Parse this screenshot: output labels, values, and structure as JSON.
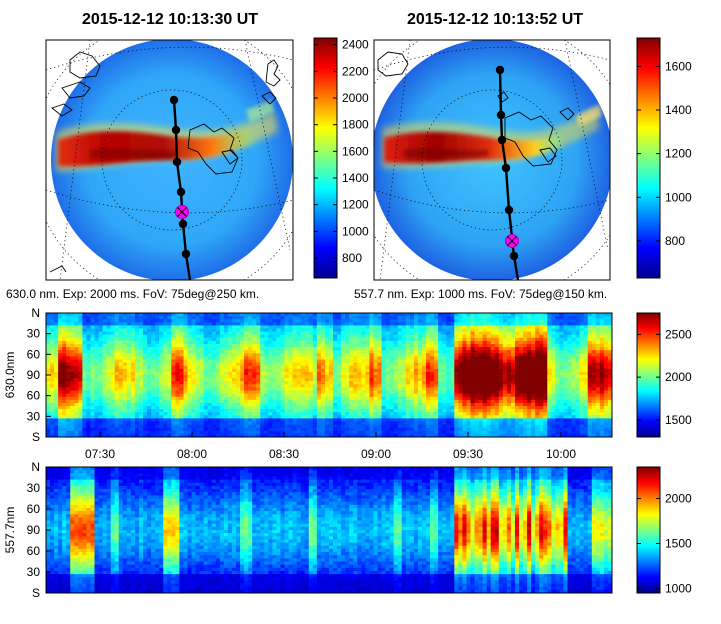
{
  "colors": {
    "jet": [
      "#00008f",
      "#0000ff",
      "#00ffff",
      "#ffff00",
      "#ff0000",
      "#800000"
    ],
    "track": "#000000",
    "marker": "#ff00ff",
    "coast": "#000000"
  },
  "sky_panels": [
    {
      "title": "2015-12-12 10:13:30 UT",
      "caption": "630.0 nm. Exp: 2000 ms. FoV: 75deg@250 km.",
      "colorbar": {
        "min": 650,
        "max": 2450,
        "ticks": [
          "800",
          "1000",
          "1200",
          "1400",
          "1600",
          "1800",
          "2000",
          "2200",
          "2400"
        ],
        "tick_values": [
          800,
          1000,
          1200,
          1400,
          1600,
          1800,
          2000,
          2200,
          2400
        ]
      }
    },
    {
      "title": "2015-12-12 10:13:52 UT",
      "caption": "557.7 nm. Exp: 1000 ms. FoV: 75deg@150 km.",
      "colorbar": {
        "min": 630,
        "max": 1730,
        "ticks": [
          "800",
          "1000",
          "1200",
          "1400",
          "1600"
        ],
        "tick_values": [
          800,
          1000,
          1200,
          1400,
          1600
        ]
      }
    }
  ],
  "keograms": [
    {
      "ylabel": "630.0nm",
      "y_ticks": [
        "N",
        "30",
        "60",
        "90",
        "60",
        "30",
        "S"
      ],
      "colorbar": {
        "min": 1300,
        "max": 2750,
        "ticks": [
          "1500",
          "2000",
          "2500"
        ],
        "tick_values": [
          1500,
          2000,
          2500
        ]
      }
    },
    {
      "ylabel": "557.7nm",
      "y_ticks": [
        "N",
        "30",
        "60",
        "90",
        "60",
        "30",
        "S"
      ],
      "colorbar": {
        "min": 950,
        "max": 2350,
        "ticks": [
          "1000",
          "1500",
          "2000"
        ],
        "tick_values": [
          1000,
          1500,
          2000
        ]
      }
    }
  ],
  "time_axis": {
    "labels": [
      "07:30",
      "08:00",
      "08:30",
      "09:00",
      "09:30",
      "10:00"
    ]
  },
  "chart_data": [
    {
      "type": "heatmap",
      "title": "2015-12-12 10:13:30 UT",
      "subtitle": "630.0 nm. Exp: 2000 ms. FoV: 75deg@250 km.",
      "description_values": {
        "colorbar_range": [
          650,
          2450
        ],
        "colorbar_ticks": [
          800,
          1000,
          1200,
          1400,
          1600,
          1800,
          2000,
          2200,
          2400
        ]
      }
    },
    {
      "type": "heatmap",
      "title": "2015-12-12 10:13:52 UT",
      "subtitle": "557.7 nm. Exp: 1000 ms. FoV: 75deg@150 km.",
      "description_values": {
        "colorbar_range": [
          630,
          1730
        ],
        "colorbar_ticks": [
          800,
          1000,
          1200,
          1400,
          1600
        ]
      }
    },
    {
      "type": "heatmap",
      "ylabel": "630.0nm",
      "x_ticks": [
        "07:30",
        "08:00",
        "08:30",
        "09:00",
        "09:30",
        "10:00"
      ],
      "y_ticks": [
        "N",
        "30",
        "60",
        "90",
        "60",
        "30",
        "S"
      ],
      "colorbar_range": [
        1300,
        2750
      ],
      "colorbar_ticks": [
        1500,
        2000,
        2500
      ]
    },
    {
      "type": "heatmap",
      "ylabel": "557.7nm",
      "x_ticks": [
        "07:30",
        "08:00",
        "08:30",
        "09:00",
        "09:30",
        "10:00"
      ],
      "y_ticks": [
        "N",
        "30",
        "60",
        "90",
        "60",
        "30",
        "S"
      ],
      "colorbar_range": [
        950,
        2350
      ],
      "colorbar_ticks": [
        1000,
        1500,
        2000
      ]
    }
  ]
}
